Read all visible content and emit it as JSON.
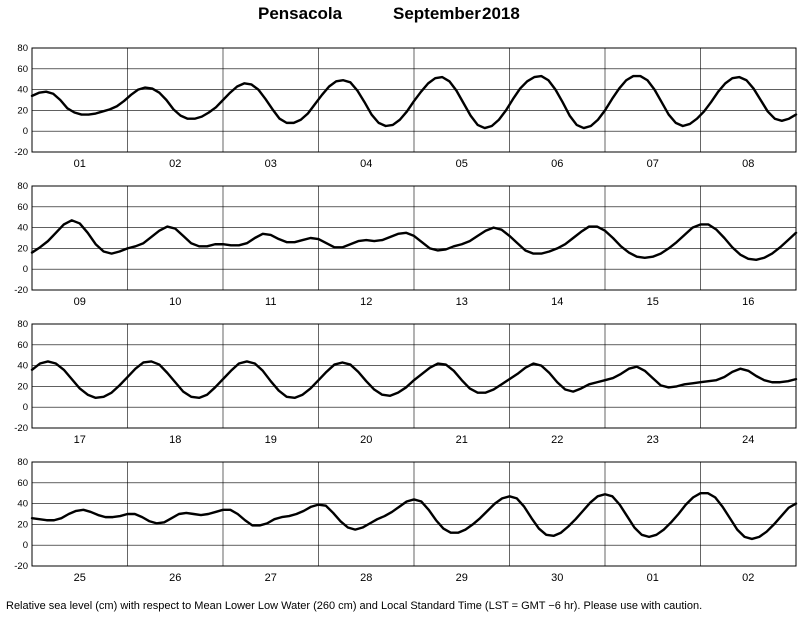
{
  "title": {
    "location": "Pensacola",
    "month": "September",
    "year": "2018"
  },
  "footer": "Relative sea level (cm) with respect to Mean Lower Low Water (260 cm) and Local Standard Time (LST = GMT −6 hr). Please use with caution.",
  "chart_data": [
    {
      "type": "line",
      "days": [
        "01",
        "02",
        "03",
        "04",
        "05",
        "06",
        "07",
        "08"
      ],
      "ylim": [
        -20,
        80
      ],
      "yticks": [
        -20,
        0,
        20,
        40,
        60,
        80
      ],
      "grid": true,
      "values": [
        34,
        37,
        38,
        36,
        30,
        22,
        18,
        16,
        16,
        17,
        19,
        21,
        24,
        29,
        35,
        40,
        42,
        41,
        37,
        30,
        21,
        15,
        12,
        12,
        14,
        18,
        23,
        30,
        37,
        43,
        46,
        45,
        40,
        31,
        21,
        12,
        8,
        8,
        11,
        17,
        26,
        35,
        43,
        48,
        49,
        47,
        39,
        28,
        16,
        8,
        5,
        6,
        11,
        19,
        29,
        38,
        46,
        51,
        52,
        48,
        39,
        27,
        15,
        6,
        3,
        5,
        11,
        20,
        31,
        41,
        48,
        52,
        53,
        49,
        40,
        28,
        15,
        6,
        3,
        5,
        11,
        20,
        31,
        41,
        49,
        53,
        53,
        49,
        40,
        28,
        16,
        8,
        5,
        7,
        12,
        19,
        28,
        38,
        46,
        51,
        52,
        49,
        41,
        30,
        19,
        12,
        10,
        12,
        16
      ]
    },
    {
      "type": "line",
      "days": [
        "09",
        "10",
        "11",
        "12",
        "13",
        "14",
        "15",
        "16"
      ],
      "ylim": [
        -20,
        80
      ],
      "yticks": [
        -20,
        0,
        20,
        40,
        60,
        80
      ],
      "grid": true,
      "values": [
        16,
        21,
        27,
        35,
        43,
        47,
        44,
        35,
        24,
        17,
        15,
        17,
        20,
        22,
        25,
        31,
        37,
        41,
        39,
        32,
        25,
        22,
        22,
        24,
        24,
        23,
        23,
        25,
        30,
        34,
        33,
        29,
        26,
        26,
        28,
        30,
        29,
        25,
        21,
        21,
        24,
        27,
        28,
        27,
        28,
        31,
        34,
        35,
        32,
        26,
        20,
        18,
        19,
        22,
        24,
        27,
        32,
        37,
        40,
        38,
        32,
        25,
        18,
        15,
        15,
        17,
        20,
        24,
        30,
        36,
        41,
        41,
        37,
        30,
        22,
        16,
        12,
        11,
        12,
        15,
        20,
        26,
        33,
        40,
        43,
        43,
        38,
        30,
        21,
        14,
        10,
        9,
        11,
        15,
        21,
        28,
        35
      ]
    },
    {
      "type": "line",
      "days": [
        "17",
        "18",
        "19",
        "20",
        "21",
        "22",
        "23",
        "24"
      ],
      "ylim": [
        -20,
        80
      ],
      "yticks": [
        -20,
        0,
        20,
        40,
        60,
        80
      ],
      "grid": true,
      "values": [
        36,
        42,
        44,
        42,
        36,
        27,
        18,
        12,
        9,
        10,
        14,
        21,
        29,
        37,
        43,
        44,
        41,
        33,
        24,
        15,
        10,
        9,
        12,
        19,
        27,
        35,
        42,
        44,
        42,
        35,
        25,
        16,
        10,
        9,
        12,
        18,
        26,
        34,
        41,
        43,
        41,
        34,
        25,
        17,
        12,
        11,
        14,
        19,
        26,
        32,
        38,
        42,
        41,
        35,
        26,
        18,
        14,
        14,
        17,
        22,
        27,
        32,
        38,
        42,
        40,
        33,
        24,
        17,
        15,
        18,
        22,
        24,
        26,
        28,
        32,
        37,
        39,
        35,
        28,
        21,
        19,
        20,
        22,
        23,
        24,
        25,
        26,
        29,
        34,
        37,
        35,
        30,
        26,
        24,
        24,
        25,
        27
      ]
    },
    {
      "type": "line",
      "days": [
        "25",
        "26",
        "27",
        "28",
        "29",
        "30",
        "01",
        "02"
      ],
      "ylim": [
        -20,
        80
      ],
      "yticks": [
        -20,
        0,
        20,
        40,
        60,
        80
      ],
      "grid": true,
      "values": [
        26,
        25,
        24,
        24,
        26,
        30,
        33,
        34,
        32,
        29,
        27,
        27,
        28,
        30,
        30,
        27,
        23,
        21,
        22,
        26,
        30,
        31,
        30,
        29,
        30,
        32,
        34,
        34,
        30,
        24,
        19,
        19,
        21,
        25,
        27,
        28,
        30,
        33,
        37,
        39,
        38,
        31,
        23,
        17,
        15,
        17,
        21,
        25,
        28,
        32,
        37,
        42,
        44,
        42,
        34,
        24,
        16,
        12,
        12,
        15,
        20,
        26,
        33,
        40,
        45,
        47,
        45,
        37,
        26,
        16,
        10,
        9,
        12,
        18,
        25,
        33,
        41,
        47,
        49,
        47,
        39,
        28,
        17,
        10,
        8,
        10,
        15,
        22,
        30,
        39,
        46,
        50,
        50,
        46,
        37,
        26,
        15,
        8,
        6,
        8,
        13,
        20,
        28,
        36,
        40
      ]
    }
  ]
}
